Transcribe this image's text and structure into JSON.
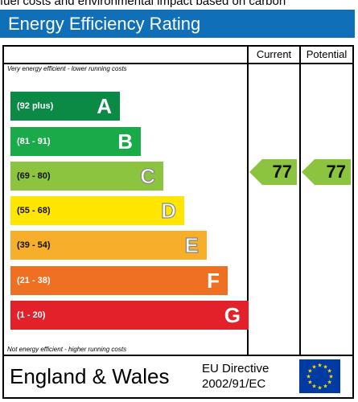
{
  "top_text": "fuel costs and environmental impact based on carbon",
  "header": {
    "title": "Energy Efficiency Rating"
  },
  "columns": {
    "current": "Current",
    "potential": "Potential"
  },
  "notes": {
    "top": "Very energy efficient - lower running costs",
    "bottom": "Not energy efficient - higher running costs"
  },
  "bands": [
    {
      "range": "(92 plus)",
      "letter": "A",
      "color": "#0a8a45"
    },
    {
      "range": "(81 - 91)",
      "letter": "B",
      "color": "#1aaa4a"
    },
    {
      "range": "(69 - 80)",
      "letter": "C",
      "color": "#8cc43f"
    },
    {
      "range": "(55 - 68)",
      "letter": "D",
      "color": "#ffe600"
    },
    {
      "range": "(39 - 54)",
      "letter": "E",
      "color": "#f7ae2a"
    },
    {
      "range": "(21 - 38)",
      "letter": "F",
      "color": "#ef7023"
    },
    {
      "range": "(1 - 20)",
      "letter": "G",
      "color": "#e3212a"
    }
  ],
  "ratings": {
    "current": "77",
    "potential": "77",
    "badge_color": "#8cc43f"
  },
  "footer": {
    "country": "England & Wales",
    "directive_line1": "EU Directive",
    "directive_line2": "2002/91/EC"
  }
}
